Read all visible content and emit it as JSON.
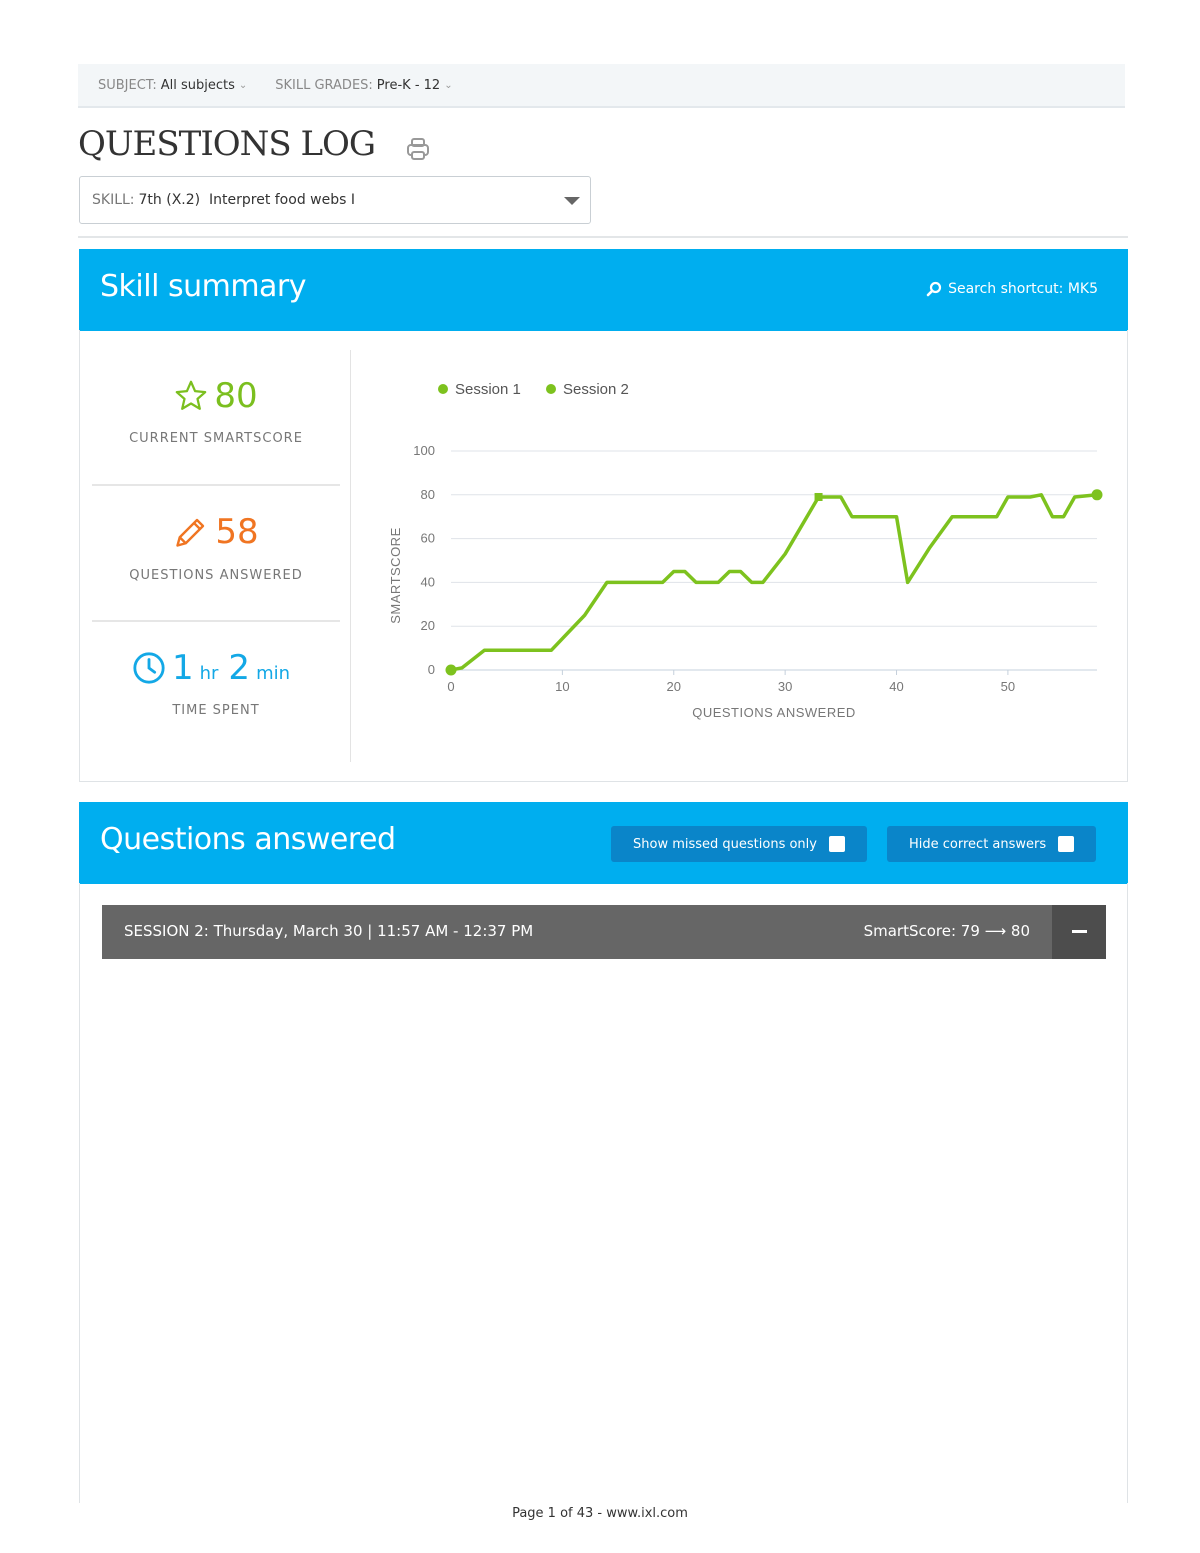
{
  "filters": [
    {
      "label": "SUBJECT:",
      "value": "All subjects"
    },
    {
      "label": "SKILL GRADES:",
      "value": "Pre-K - 12"
    }
  ],
  "page_title": "QUESTIONS LOG",
  "skill_select": {
    "label": "SKILL:",
    "value": "7th (X.2)  Interpret food webs I"
  },
  "summary": {
    "title": "Skill summary",
    "search_shortcut": "Search shortcut: MK5",
    "smartscore": {
      "value": "80",
      "caption": "CURRENT SMARTSCORE"
    },
    "questions": {
      "value": "58",
      "caption": "QUESTIONS ANSWERED"
    },
    "time": {
      "hours": "1",
      "hours_unit": "hr",
      "minutes": "2",
      "minutes_unit": "min",
      "caption": "TIME SPENT"
    }
  },
  "chart_data": {
    "type": "line",
    "xlabel": "QUESTIONS ANSWERED",
    "ylabel": "SMARTSCORE",
    "xlim": [
      0,
      58
    ],
    "ylim": [
      0,
      100
    ],
    "xticks": [
      0,
      10,
      20,
      30,
      40,
      50
    ],
    "yticks": [
      0,
      20,
      40,
      60,
      80,
      100
    ],
    "grid": true,
    "legend_position": "top-left",
    "series": [
      {
        "name": "Session 1",
        "color": "#7dc21e",
        "x": [
          0,
          1,
          3,
          9,
          12,
          14,
          19,
          20,
          21,
          22,
          24,
          25,
          26,
          27,
          28,
          30,
          33
        ],
        "y": [
          0,
          1,
          9,
          9,
          25,
          40,
          40,
          45,
          45,
          40,
          40,
          45,
          45,
          40,
          40,
          53,
          79
        ]
      },
      {
        "name": "Session 2",
        "color": "#7dc21e",
        "x": [
          33,
          35,
          36,
          40,
          41,
          43,
          45,
          49,
          50,
          52,
          53,
          54,
          55,
          56,
          58
        ],
        "y": [
          79,
          79,
          70,
          70,
          40,
          56,
          70,
          70,
          79,
          79,
          80,
          70,
          70,
          79,
          80
        ]
      }
    ]
  },
  "questions_answered": {
    "title": "Questions answered",
    "show_missed_label": "Show missed questions only",
    "hide_correct_label": "Hide correct answers"
  },
  "session": {
    "title": "SESSION 2: Thursday, March 30 | 11:57 AM - 12:37 PM",
    "smartscore": "SmartScore: 79 ⟶ 80"
  },
  "footer": "Page 1 of 43 - www.ixl.com"
}
